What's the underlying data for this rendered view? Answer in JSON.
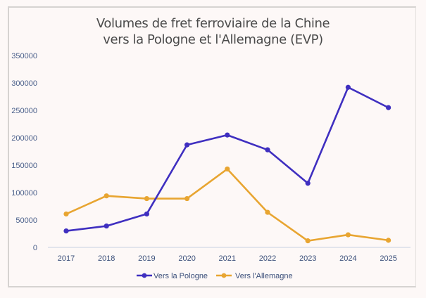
{
  "chart_data": {
    "type": "line",
    "title": "Volumes de fret ferroviaire de la Chine vers la Pologne et l'Allemagne (EVP)",
    "title_lines": [
      "Volumes de fret ferroviaire de la Chine",
      "vers la Pologne et l'Allemagne (EVP)"
    ],
    "xlabel": "",
    "ylabel": "",
    "x": [
      "2017",
      "2018",
      "2019",
      "2020",
      "2021",
      "2022",
      "2023",
      "2024",
      "2025"
    ],
    "ylim": [
      0,
      350000
    ],
    "yticks": [
      0,
      50000,
      100000,
      150000,
      200000,
      250000,
      300000,
      350000
    ],
    "ytick_labels": [
      "0",
      "50000",
      "100000",
      "150000",
      "200000",
      "250000",
      "300000",
      "350000"
    ],
    "grid": false,
    "legend_position": "bottom",
    "series": [
      {
        "name": "Vers la Pologne",
        "color": "#3f2fc0",
        "values": [
          30000,
          39000,
          61000,
          187000,
          205000,
          178000,
          117000,
          292000,
          255000
        ]
      },
      {
        "name": "Vers l'Allemagne",
        "color": "#e8a531",
        "values": [
          61000,
          94000,
          89000,
          89000,
          143000,
          64000,
          12000,
          23000,
          13000
        ]
      }
    ]
  }
}
